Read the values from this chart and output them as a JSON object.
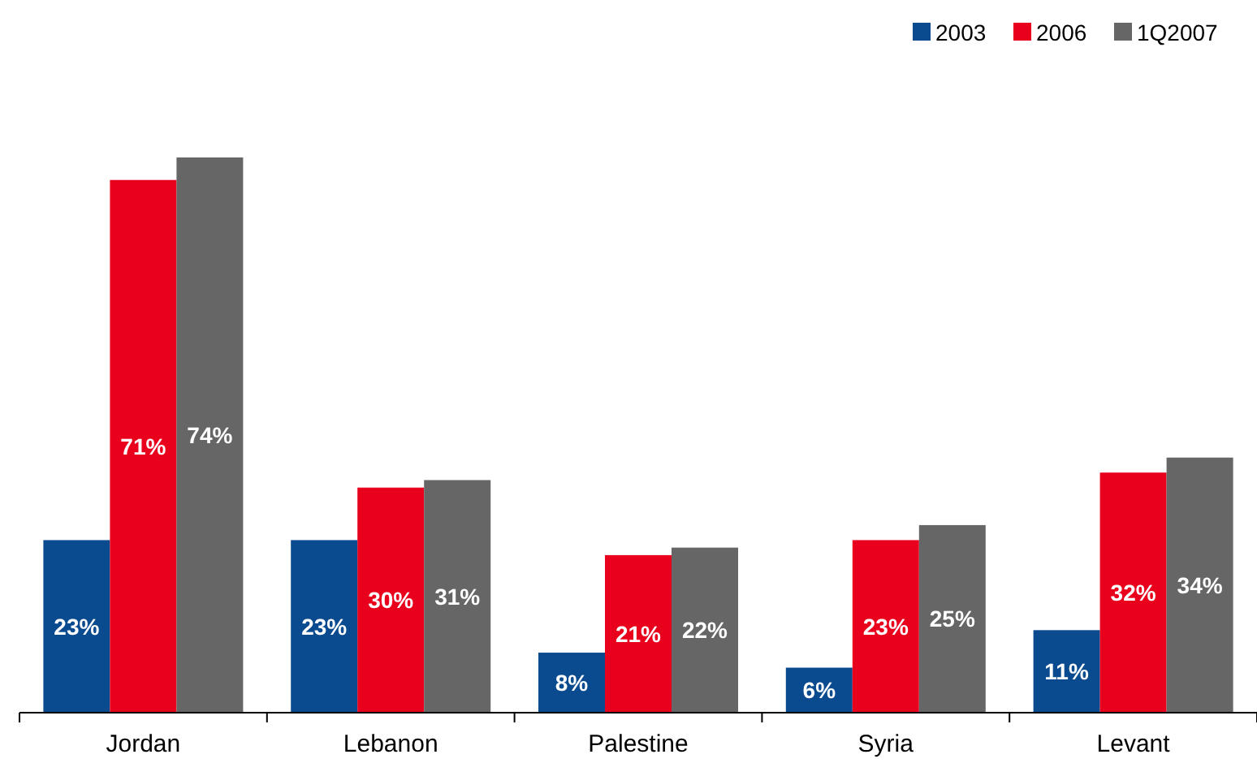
{
  "chart_data": {
    "type": "bar",
    "categories": [
      "Jordan",
      "Lebanon",
      "Palestine",
      "Syria",
      "Levant"
    ],
    "series": [
      {
        "name": "2003",
        "color": "#0a4a8f",
        "values": [
          23,
          23,
          8,
          6,
          11
        ],
        "value_labels": [
          "23%",
          "23%",
          "8%",
          "6%",
          "11%"
        ]
      },
      {
        "name": "2006",
        "color": "#e8001c",
        "values": [
          71,
          30,
          21,
          23,
          32
        ],
        "value_labels": [
          "71%",
          "30%",
          "21%",
          "23%",
          "32%"
        ]
      },
      {
        "name": "1Q2007",
        "color": "#666666",
        "values": [
          74,
          31,
          22,
          25,
          34
        ],
        "value_labels": [
          "74%",
          "31%",
          "22%",
          "25%",
          "34%"
        ]
      }
    ],
    "legend": "top right"
  }
}
